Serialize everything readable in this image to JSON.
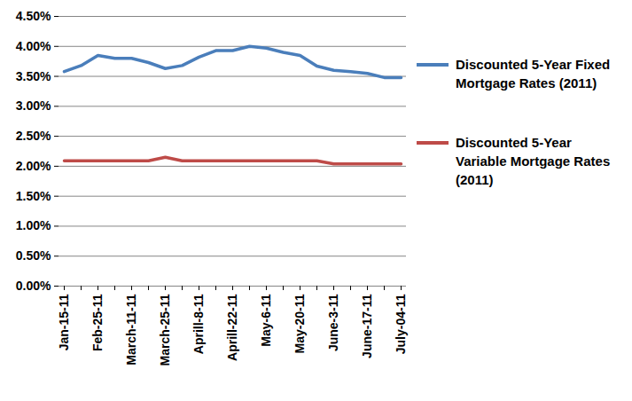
{
  "chart_data": {
    "type": "line",
    "categories": [
      "Jan-15-11",
      null,
      "Feb-25-11",
      null,
      "March-11-11",
      null,
      "March-25-11",
      null,
      "Aprill-8-11",
      null,
      "Aprill-22-11",
      null,
      "May-6-11",
      null,
      "May-20-11",
      null,
      "June-3-11",
      null,
      "June-17-11",
      null,
      "July-04-11"
    ],
    "series": [
      {
        "name": "Discounted 5-Year Fixed Mortgage Rates (2011)",
        "color": "#4a7ebb",
        "values": [
          3.58,
          3.68,
          3.85,
          3.8,
          3.8,
          3.73,
          3.63,
          3.68,
          3.82,
          3.93,
          3.93,
          4.0,
          3.97,
          3.9,
          3.85,
          3.67,
          3.6,
          3.58,
          3.55,
          3.48,
          3.48
        ]
      },
      {
        "name": "Discounted 5-Year Variable Mortgage Rates (2011)",
        "color": "#be4b48",
        "values": [
          2.09,
          2.09,
          2.09,
          2.09,
          2.09,
          2.09,
          2.15,
          2.09,
          2.09,
          2.09,
          2.09,
          2.09,
          2.09,
          2.09,
          2.09,
          2.09,
          2.04,
          2.04,
          2.04,
          2.04,
          2.04
        ]
      }
    ],
    "ylim": [
      0,
      4.5
    ],
    "yticks": [
      {
        "value": 0,
        "label": "0.00%"
      },
      {
        "value": 0.5,
        "label": "0.50%"
      },
      {
        "value": 1,
        "label": "1.00%"
      },
      {
        "value": 1.5,
        "label": "1.50%"
      },
      {
        "value": 2,
        "label": "2.00%"
      },
      {
        "value": 2.5,
        "label": "2.50%"
      },
      {
        "value": 3,
        "label": "3.00%"
      },
      {
        "value": 3.5,
        "label": "3.50%"
      },
      {
        "value": 4,
        "label": "4.00%"
      },
      {
        "value": 4.5,
        "label": "4.50%"
      }
    ],
    "grid": true,
    "legend": "right"
  }
}
